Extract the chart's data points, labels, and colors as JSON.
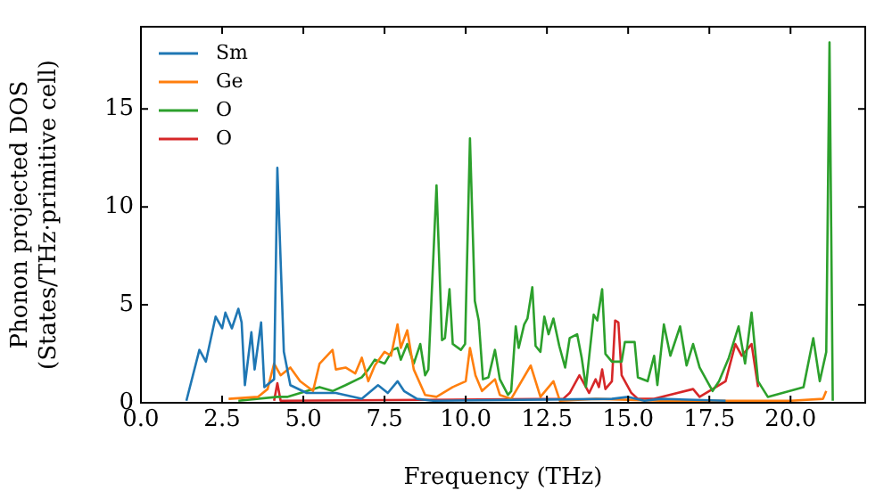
{
  "chart_data": {
    "type": "line",
    "xlabel": "Frequency (THz)",
    "ylabel": "Phonon projected DOS\n(States/THz·primitive cell)",
    "xlim": [
      0,
      22.3
    ],
    "ylim": [
      0,
      19.2
    ],
    "xticks": [
      {
        "value": 0,
        "label": "0.0"
      },
      {
        "value": 2.5,
        "label": "2.5"
      },
      {
        "value": 5,
        "label": "5.0"
      },
      {
        "value": 7.5,
        "label": "7.5"
      },
      {
        "value": 10,
        "label": "10.0"
      },
      {
        "value": 12.5,
        "label": "12.5"
      },
      {
        "value": 15,
        "label": "15.0"
      },
      {
        "value": 17.5,
        "label": "17.5"
      },
      {
        "value": 20,
        "label": "20.0"
      }
    ],
    "yticks": [
      0,
      5,
      10,
      15
    ],
    "grid": false,
    "legend": "top left",
    "marker": "none",
    "line_style": "solid",
    "series": [
      {
        "name": "Sm",
        "color": "#1f77b4",
        "x": [
          1.4,
          1.8,
          2.0,
          2.3,
          2.5,
          2.6,
          2.8,
          3.0,
          3.1,
          3.2,
          3.4,
          3.5,
          3.7,
          3.8,
          4.1,
          4.2,
          4.4,
          4.6,
          5.1,
          6.0,
          6.8,
          7.3,
          7.6,
          7.9,
          8.1,
          8.5,
          9.0,
          14.5,
          15,
          15.5,
          16,
          18
        ],
        "values": [
          0.1,
          2.7,
          2.1,
          4.4,
          3.8,
          4.6,
          3.8,
          4.8,
          4.1,
          0.9,
          3.6,
          1.7,
          4.1,
          0.8,
          1.2,
          12.0,
          2.6,
          0.9,
          0.5,
          0.5,
          0.2,
          0.9,
          0.5,
          1.1,
          0.6,
          0.2,
          0.1,
          0.2,
          0.3,
          0.1,
          0.2,
          0.1
        ]
      },
      {
        "name": "Ge",
        "color": "#ff7f0e",
        "x": [
          2.7,
          3.6,
          3.9,
          4.1,
          4.3,
          4.6,
          4.9,
          5.3,
          5.5,
          5.9,
          6.0,
          6.3,
          6.6,
          6.8,
          7.0,
          7.2,
          7.5,
          7.7,
          7.9,
          8.0,
          8.2,
          8.4,
          8.75,
          9.1,
          9.6,
          10.0,
          10.13,
          10.3,
          10.5,
          10.9,
          11.05,
          11.4,
          12.0,
          12.3,
          12.7,
          12.9,
          14,
          16,
          18,
          20,
          21.0,
          21.1
        ],
        "values": [
          0.2,
          0.3,
          0.7,
          2.0,
          1.4,
          1.8,
          1.1,
          0.6,
          2.0,
          2.7,
          1.7,
          1.8,
          1.5,
          2.3,
          1.1,
          1.9,
          2.6,
          2.4,
          4.0,
          2.8,
          3.7,
          1.7,
          0.4,
          0.3,
          0.8,
          1.1,
          2.8,
          1.4,
          0.6,
          1.2,
          0.4,
          0.2,
          1.9,
          0.3,
          1.1,
          0.1,
          0.2,
          0.1,
          0.1,
          0.1,
          0.2,
          0.6
        ]
      },
      {
        "name": "O",
        "color": "#2ca02c",
        "x": [
          3.0,
          4.2,
          4.5,
          5.5,
          5.9,
          6.3,
          6.8,
          7.0,
          7.2,
          7.5,
          7.75,
          7.9,
          8.0,
          8.2,
          8.4,
          8.6,
          8.75,
          8.85,
          9.1,
          9.27,
          9.36,
          9.5,
          9.6,
          9.85,
          9.98,
          10.13,
          10.28,
          10.4,
          10.53,
          10.7,
          10.9,
          11.05,
          11.3,
          11.4,
          11.54,
          11.63,
          11.8,
          11.9,
          12.05,
          12.15,
          12.3,
          12.42,
          12.55,
          12.7,
          12.88,
          13.06,
          13.2,
          13.43,
          13.57,
          13.7,
          13.94,
          14.05,
          14.2,
          14.3,
          14.5,
          14.8,
          14.9,
          15.2,
          15.3,
          15.6,
          15.8,
          15.9,
          16.1,
          16.3,
          16.6,
          16.8,
          17.0,
          17.2,
          17.6,
          17.8,
          18.1,
          18.4,
          18.6,
          18.8,
          19.0,
          19.3,
          20.4,
          20.7,
          20.9,
          21.1,
          21.2,
          21.3
        ],
        "values": [
          0.1,
          0.3,
          0.3,
          0.8,
          0.6,
          0.9,
          1.3,
          1.7,
          2.2,
          2.0,
          2.7,
          2.8,
          2.2,
          3.0,
          2.0,
          3.0,
          1.4,
          1.7,
          11.1,
          3.2,
          3.3,
          5.8,
          3.0,
          2.7,
          3.0,
          13.5,
          5.2,
          4.2,
          1.2,
          1.3,
          2.7,
          1.2,
          0.4,
          0.6,
          3.9,
          2.8,
          4.0,
          4.3,
          5.9,
          2.9,
          2.6,
          4.4,
          3.5,
          4.3,
          2.9,
          1.8,
          3.3,
          3.5,
          2.3,
          0.8,
          4.5,
          4.2,
          5.8,
          2.5,
          2.1,
          2.1,
          3.1,
          3.1,
          1.3,
          1.1,
          2.4,
          0.9,
          4.0,
          2.4,
          3.9,
          1.9,
          3.0,
          1.8,
          0.6,
          1.1,
          2.3,
          3.9,
          2.0,
          4.6,
          1.1,
          0.3,
          0.8,
          3.3,
          1.1,
          2.6,
          18.4,
          0.1
        ]
      },
      {
        "name": "O",
        "color": "#d62728",
        "x": [
          4.1,
          4.2,
          4.3,
          13.0,
          13.2,
          13.5,
          13.7,
          13.8,
          14.0,
          14.1,
          14.2,
          14.3,
          14.5,
          14.6,
          14.7,
          14.8,
          15.1,
          15.3,
          15.8,
          17.0,
          17.2,
          18.0,
          18.3,
          18.5,
          18.8,
          19.0
        ],
        "values": [
          0.1,
          1.0,
          0.1,
          0.2,
          0.5,
          1.4,
          0.8,
          0.5,
          1.2,
          0.8,
          1.7,
          0.7,
          1.1,
          4.2,
          4.1,
          1.4,
          0.5,
          0.2,
          0.2,
          0.7,
          0.3,
          1.1,
          3.0,
          2.4,
          3.0,
          0.8
        ]
      }
    ]
  }
}
